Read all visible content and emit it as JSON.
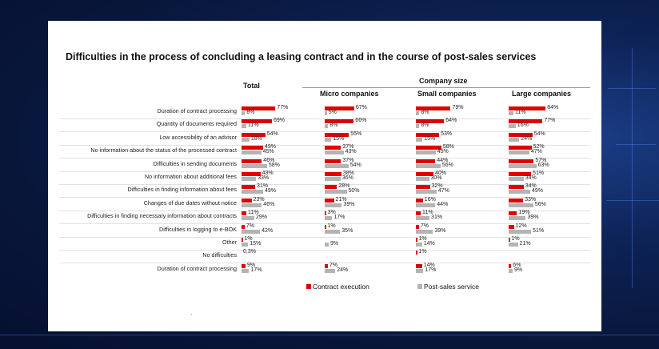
{
  "colors": {
    "contract": "#e00000",
    "post": "#b4b4b4"
  },
  "chart_data": {
    "type": "bar",
    "title": "Difficulties in the process of concluding a leasing contract and in the course of post-sales services",
    "group_header": "Company size",
    "panels": [
      "Total",
      "Micro companies",
      "Small companies",
      "Large companies"
    ],
    "categories": [
      "Duration of contract processing",
      "Quantity of documents required",
      "Low accessibility of an advisor",
      "No information about the status of the processed contract",
      "Difficulties in sending documents",
      "No information about additional fees",
      "Difficulties in finding information about fees",
      "Changes of due dates without notice",
      "Difficulties in finding necessary information about contracts",
      "Difficulties in logging to e-BOK",
      "Other",
      "No difficulties",
      "Duration of contract processing"
    ],
    "series": [
      {
        "name": "Contract execution",
        "values": {
          "Total": [
            77,
            69,
            54,
            49,
            46,
            43,
            31,
            23,
            11,
            7,
            1,
            0.3,
            9
          ],
          "Micro companies": [
            67,
            66,
            55,
            37,
            37,
            38,
            28,
            21,
            3,
            1,
            null,
            null,
            7
          ],
          "Small companies": [
            79,
            64,
            53,
            58,
            44,
            40,
            32,
            16,
            11,
            7,
            1,
            1,
            14
          ],
          "Large companies": [
            84,
            77,
            54,
            52,
            57,
            51,
            34,
            33,
            19,
            12,
            1,
            null,
            6
          ]
        },
        "labels": {
          "Total": [
            "77%",
            "69%",
            "54%",
            "49%",
            "46%",
            "43%",
            "31%",
            "23%",
            "11%",
            "7%",
            "1%",
            "0,3%",
            "9%"
          ],
          "Micro companies": [
            "67%",
            "66%",
            "55%",
            "37%",
            "37%",
            "38%",
            "28%",
            "21%",
            "3%",
            "1%",
            "",
            "",
            "7%"
          ],
          "Small companies": [
            "79%",
            "64%",
            "53%",
            "58%",
            "44%",
            "40%",
            "32%",
            "16%",
            "11%",
            "7%",
            "1%",
            "1%",
            "14%"
          ],
          "Large companies": [
            "84%",
            "77%",
            "54%",
            "52%",
            "57%",
            "51%",
            "34%",
            "33%",
            "19%",
            "12%",
            "1%",
            "",
            "6%"
          ]
        }
      },
      {
        "name": "Post-sales service",
        "values": {
          "Total": [
            8,
            11,
            18,
            45,
            58,
            33,
            49,
            46,
            29,
            42,
            15,
            null,
            17
          ],
          "Micro companies": [
            5,
            8,
            15,
            43,
            54,
            36,
            50,
            39,
            17,
            35,
            9,
            null,
            24
          ],
          "Small companies": [
            8,
            8,
            15,
            45,
            56,
            30,
            47,
            44,
            31,
            39,
            14,
            null,
            17
          ],
          "Large companies": [
            11,
            16,
            24,
            47,
            63,
            34,
            49,
            56,
            39,
            51,
            21,
            null,
            9
          ]
        },
        "labels": {
          "Total": [
            "8%",
            "11%",
            "18%",
            "45%",
            "58%",
            "33%",
            "49%",
            "46%",
            "29%",
            "42%",
            "15%",
            "",
            "17%"
          ],
          "Micro companies": [
            "5%",
            "8%",
            "15%",
            "43%",
            "54%",
            "36%",
            "50%",
            "39%",
            "17%",
            "35%",
            "9%",
            "",
            "24%"
          ],
          "Small companies": [
            "8%",
            "8%",
            "15%",
            "45%",
            "56%",
            "30%",
            "47%",
            "44%",
            "31%",
            "39%",
            "14%",
            "",
            "17%"
          ],
          "Large companies": [
            "11%",
            "16%",
            "24%",
            "47%",
            "63%",
            "34%",
            "49%",
            "56%",
            "39%",
            "51%",
            "21%",
            "",
            "9%"
          ]
        }
      }
    ],
    "legend_position": "bottom-center",
    "grid": false
  }
}
